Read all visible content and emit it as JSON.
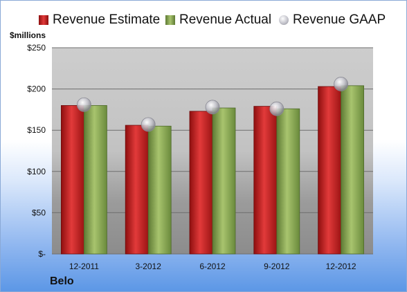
{
  "unit_label": "$millions",
  "company": "Belo",
  "colors": {
    "estimate": "#cc1f1f",
    "actual": "#8bac54",
    "gaap": "#b4b4bc"
  },
  "chart_data": {
    "type": "bar",
    "categories": [
      "12-2011",
      "3-2012",
      "6-2012",
      "9-2012",
      "12-2012"
    ],
    "series": [
      {
        "name": "Revenue Estimate",
        "values": [
          180,
          156,
          173,
          179,
          203
        ]
      },
      {
        "name": "Revenue Actual",
        "values": [
          180,
          155,
          177,
          176,
          204
        ]
      },
      {
        "name": "Revenue GAAP",
        "values": [
          181,
          157,
          178,
          176,
          206
        ]
      }
    ],
    "ylim": [
      0,
      250
    ],
    "yticks": [
      0,
      50,
      100,
      150,
      200,
      250
    ],
    "ytick_labels": [
      "$-",
      "$50",
      "$100",
      "$150",
      "$200",
      "$250"
    ],
    "legend": "top",
    "grid": true
  }
}
